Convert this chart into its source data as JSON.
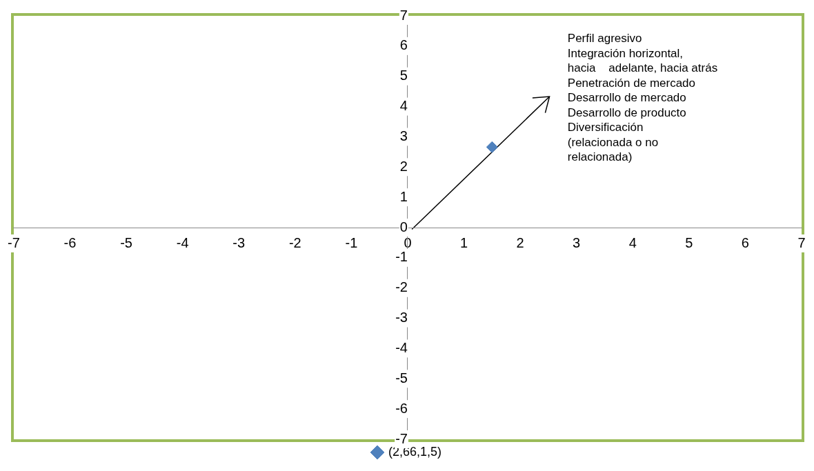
{
  "chart_data": {
    "type": "scatter",
    "series": [
      {
        "name": "(2,66,1,5)",
        "color": "#4f81bd",
        "x": [
          1.5
        ],
        "values": [
          2.66
        ]
      }
    ],
    "xlim": [
      -7,
      7
    ],
    "ylim": [
      -7,
      7
    ],
    "xticks": [
      -7,
      -6,
      -5,
      -4,
      -3,
      -2,
      -1,
      0,
      1,
      2,
      3,
      4,
      5,
      6,
      7
    ],
    "yticks": [
      -7,
      -6,
      -5,
      -4,
      -3,
      -2,
      -1,
      0,
      1,
      2,
      3,
      4,
      5,
      6,
      7
    ],
    "marker": "diamond",
    "legend": "bottom",
    "annotations": [
      "Perfil agresivo\nIntegración horizontal,\nhacia    adelante, hacia atrás\nPenetración de mercado\nDesarrollo de mercado\nDesarrollo de producto\nDiversificación\n(relacionada o no\nrelacionada)"
    ]
  }
}
